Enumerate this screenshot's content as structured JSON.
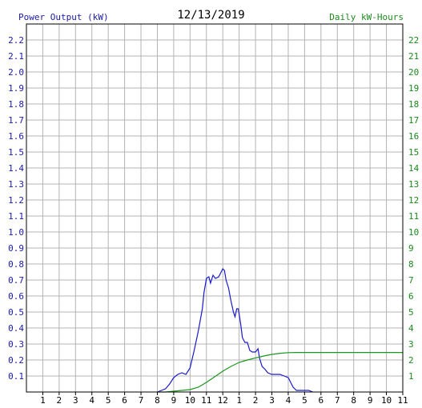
{
  "header": {
    "left_title": "Power Output (kW)",
    "date": "12/13/2019",
    "right_title": "Daily kW-Hours"
  },
  "colors": {
    "power": "#1a1acc",
    "energy": "#1c961c",
    "left_axis": "#1a1aa8",
    "right_axis": "#1c8a1c",
    "grid": "#b4b4b4",
    "border": "#000000"
  },
  "chart_data": {
    "type": "line",
    "x_ticks": [
      "1",
      "2",
      "3",
      "4",
      "5",
      "6",
      "7",
      "8",
      "9",
      "10",
      "11",
      "12",
      "1",
      "2",
      "3",
      "4",
      "5",
      "6",
      "7",
      "8",
      "9",
      "10",
      "11"
    ],
    "x_range": [
      0,
      23
    ],
    "y_left": {
      "label": "Power Output (kW)",
      "ticks": [
        "0.1",
        "0.2",
        "0.3",
        "0.4",
        "0.5",
        "0.6",
        "0.7",
        "0.8",
        "0.9",
        "1.0",
        "1.1",
        "1.2",
        "1.3",
        "1.4",
        "1.5",
        "1.6",
        "1.7",
        "1.8",
        "1.9",
        "2.0",
        "2.1",
        "2.2"
      ],
      "range": [
        0,
        2.3
      ]
    },
    "y_right": {
      "label": "Daily kW-Hours",
      "ticks": [
        "1",
        "2",
        "3",
        "4",
        "5",
        "6",
        "7",
        "8",
        "9",
        "10",
        "11",
        "12",
        "13",
        "14",
        "15",
        "16",
        "17",
        "18",
        "19",
        "20",
        "21",
        "22"
      ],
      "range": [
        0,
        23
      ]
    },
    "grid": true,
    "series": [
      {
        "name": "Power Output (kW)",
        "axis": "left",
        "points": [
          [
            8.0,
            0.0
          ],
          [
            8.25,
            0.01
          ],
          [
            8.5,
            0.02
          ],
          [
            8.75,
            0.05
          ],
          [
            9.0,
            0.09
          ],
          [
            9.25,
            0.11
          ],
          [
            9.5,
            0.12
          ],
          [
            9.75,
            0.11
          ],
          [
            10.0,
            0.15
          ],
          [
            10.25,
            0.26
          ],
          [
            10.5,
            0.38
          ],
          [
            10.75,
            0.52
          ],
          [
            10.85,
            0.62
          ],
          [
            11.0,
            0.71
          ],
          [
            11.15,
            0.72
          ],
          [
            11.25,
            0.68
          ],
          [
            11.4,
            0.73
          ],
          [
            11.55,
            0.71
          ],
          [
            11.75,
            0.72
          ],
          [
            11.9,
            0.75
          ],
          [
            12.0,
            0.77
          ],
          [
            12.1,
            0.76
          ],
          [
            12.2,
            0.7
          ],
          [
            12.35,
            0.65
          ],
          [
            12.5,
            0.57
          ],
          [
            12.65,
            0.5
          ],
          [
            12.75,
            0.47
          ],
          [
            12.85,
            0.52
          ],
          [
            12.95,
            0.52
          ],
          [
            13.1,
            0.42
          ],
          [
            13.2,
            0.34
          ],
          [
            13.35,
            0.31
          ],
          [
            13.5,
            0.31
          ],
          [
            13.65,
            0.26
          ],
          [
            13.8,
            0.25
          ],
          [
            14.0,
            0.25
          ],
          [
            14.15,
            0.27
          ],
          [
            14.25,
            0.21
          ],
          [
            14.4,
            0.16
          ],
          [
            14.6,
            0.14
          ],
          [
            14.75,
            0.12
          ],
          [
            15.0,
            0.11
          ],
          [
            15.25,
            0.11
          ],
          [
            15.5,
            0.11
          ],
          [
            15.75,
            0.1
          ],
          [
            16.0,
            0.09
          ],
          [
            16.15,
            0.06
          ],
          [
            16.3,
            0.03
          ],
          [
            16.5,
            0.01
          ],
          [
            16.75,
            0.01
          ],
          [
            17.0,
            0.01
          ],
          [
            17.25,
            0.01
          ],
          [
            17.5,
            0.0
          ]
        ]
      },
      {
        "name": "Daily kW-Hours",
        "axis": "right",
        "points": [
          [
            8.0,
            0.0
          ],
          [
            8.5,
            0.0
          ],
          [
            9.0,
            0.05
          ],
          [
            9.5,
            0.1
          ],
          [
            10.0,
            0.15
          ],
          [
            10.5,
            0.3
          ],
          [
            11.0,
            0.6
          ],
          [
            11.5,
            0.95
          ],
          [
            12.0,
            1.3
          ],
          [
            12.5,
            1.6
          ],
          [
            13.0,
            1.85
          ],
          [
            13.5,
            2.0
          ],
          [
            14.0,
            2.13
          ],
          [
            14.5,
            2.25
          ],
          [
            15.0,
            2.35
          ],
          [
            15.5,
            2.42
          ],
          [
            16.0,
            2.46
          ],
          [
            16.5,
            2.47
          ],
          [
            17.0,
            2.47
          ],
          [
            18.0,
            2.47
          ],
          [
            20.0,
            2.47
          ],
          [
            23.0,
            2.47
          ]
        ]
      }
    ]
  }
}
